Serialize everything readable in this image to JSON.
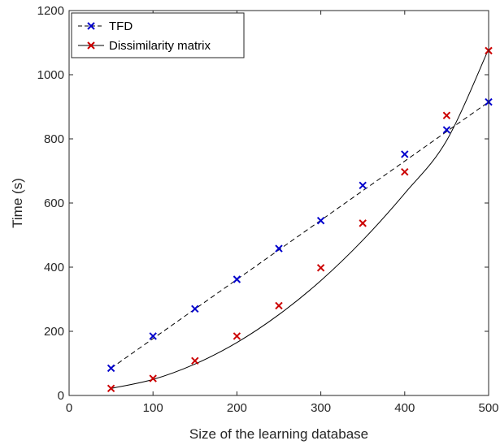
{
  "chart_data": {
    "type": "line",
    "title": "",
    "xlabel": "Size of the learning database",
    "ylabel": "Time (s)",
    "xlim": [
      0,
      500
    ],
    "ylim": [
      0,
      1200
    ],
    "xticks": [
      0,
      100,
      200,
      300,
      400,
      500
    ],
    "yticks": [
      0,
      200,
      400,
      600,
      800,
      1000,
      1200
    ],
    "grid": false,
    "legend_position": "top-left",
    "x": [
      50,
      100,
      150,
      200,
      250,
      300,
      350,
      400,
      450,
      500
    ],
    "series": [
      {
        "name": "TFD",
        "color": "#0000cc",
        "line_style": "dashed",
        "marker": "x",
        "values": [
          85,
          185,
          270,
          362,
          458,
          545,
          655,
          752,
          828,
          915
        ],
        "fit": {
          "kind": "linear",
          "points": [
            [
              50,
              85
            ],
            [
              500,
              915
            ]
          ]
        }
      },
      {
        "name": "Dissimilarity matrix",
        "color": "#cc0000",
        "line_style": "solid",
        "marker": "x",
        "values": [
          22,
          53,
          108,
          185,
          280,
          398,
          537,
          697,
          873,
          1075
        ],
        "fit": {
          "kind": "quadratic",
          "points": [
            [
              50,
              22
            ],
            [
              100,
              50
            ],
            [
              150,
              98
            ],
            [
              200,
              165
            ],
            [
              250,
              252
            ],
            [
              300,
              358
            ],
            [
              350,
              484
            ],
            [
              400,
              630
            ],
            [
              450,
              795
            ],
            [
              500,
              1080
            ]
          ]
        }
      }
    ]
  }
}
